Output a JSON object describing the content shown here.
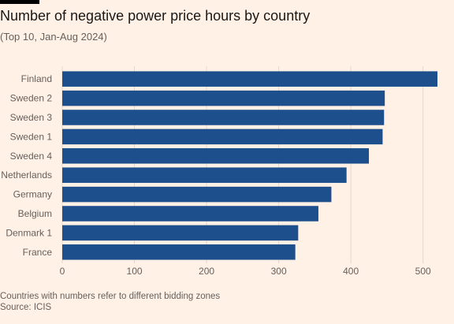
{
  "title": "Number of negative power price hours by country",
  "subtitle": "(Top 10, Jan-Aug 2024)",
  "note": "Countries with numbers refer to different bidding zones",
  "source": "Source: ICIS",
  "chart_data": {
    "type": "bar",
    "orientation": "horizontal",
    "categories": [
      "Finland",
      "Sweden 2",
      "Sweden 3",
      "Sweden 1",
      "Sweden 4",
      "Netherlands",
      "Germany",
      "Belgium",
      "Denmark 1",
      "France"
    ],
    "values": [
      520,
      447,
      446,
      444,
      425,
      394,
      373,
      355,
      327,
      323
    ],
    "xlim": [
      0,
      520
    ],
    "xticks": [
      0,
      100,
      200,
      300,
      400,
      500
    ],
    "grid": true,
    "bar_color": "#1d4f8c",
    "grid_color": "#e5d8cc"
  }
}
